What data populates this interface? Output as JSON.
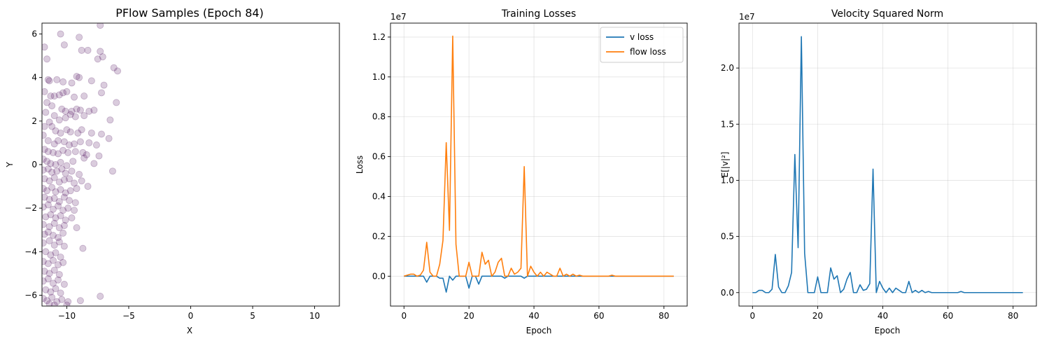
{
  "chart_data": [
    {
      "type": "scatter",
      "title": "PFlow Samples (Epoch 84)",
      "xlabel": "X",
      "ylabel": "Y",
      "xlim": [
        -12,
        12
      ],
      "ylim": [
        -6.5,
        6.5
      ],
      "xticks": [
        -10,
        -5,
        0,
        5,
        10
      ],
      "xtick_labels": [
        "−10",
        "−5",
        "0",
        "5",
        "10"
      ],
      "yticks": [
        -6,
        -4,
        -2,
        0,
        2,
        4,
        6
      ],
      "ytick_labels": [
        "−6",
        "−4",
        "−2",
        "0",
        "2",
        "4",
        "6"
      ],
      "grid": false,
      "color": "#440154",
      "alpha": 0.2,
      "points": [
        [
          -10.5,
          6.0
        ],
        [
          -11.8,
          5.4
        ],
        [
          -9.0,
          5.85
        ],
        [
          -7.3,
          6.4
        ],
        [
          -10.2,
          5.5
        ],
        [
          -8.8,
          5.25
        ],
        [
          -8.3,
          5.25
        ],
        [
          -7.3,
          5.2
        ],
        [
          -7.1,
          4.95
        ],
        [
          -7.5,
          4.85
        ],
        [
          -6.2,
          4.45
        ],
        [
          -5.9,
          4.3
        ],
        [
          -11.6,
          4.85
        ],
        [
          -11.5,
          3.9
        ],
        [
          -11.4,
          3.85
        ],
        [
          -10.8,
          3.9
        ],
        [
          -10.3,
          3.8
        ],
        [
          -9.6,
          3.75
        ],
        [
          -9.0,
          4.0
        ],
        [
          -9.2,
          4.05
        ],
        [
          -8.0,
          3.85
        ],
        [
          -7.0,
          3.65
        ],
        [
          -7.2,
          3.3
        ],
        [
          -6.0,
          2.85
        ],
        [
          -11.8,
          3.35
        ],
        [
          -11.3,
          3.15
        ],
        [
          -11.0,
          3.15
        ],
        [
          -10.6,
          3.2
        ],
        [
          -10.3,
          3.3
        ],
        [
          -10.0,
          3.35
        ],
        [
          -9.4,
          3.1
        ],
        [
          -8.6,
          3.15
        ],
        [
          -11.6,
          2.85
        ],
        [
          -11.2,
          2.7
        ],
        [
          -10.4,
          2.55
        ],
        [
          -10.1,
          2.45
        ],
        [
          -9.6,
          2.45
        ],
        [
          -9.2,
          2.55
        ],
        [
          -8.9,
          2.5
        ],
        [
          -8.2,
          2.45
        ],
        [
          -7.8,
          2.5
        ],
        [
          -11.7,
          2.4
        ],
        [
          -11.0,
          2.25
        ],
        [
          -10.6,
          2.05
        ],
        [
          -10.1,
          2.15
        ],
        [
          -9.7,
          2.3
        ],
        [
          -9.3,
          2.2
        ],
        [
          -8.6,
          2.25
        ],
        [
          -6.5,
          2.05
        ],
        [
          -11.8,
          1.75
        ],
        [
          -11.4,
          1.95
        ],
        [
          -11.2,
          1.75
        ],
        [
          -10.9,
          1.55
        ],
        [
          -10.5,
          1.45
        ],
        [
          -10.0,
          1.6
        ],
        [
          -9.7,
          1.5
        ],
        [
          -9.1,
          1.45
        ],
        [
          -8.8,
          1.6
        ],
        [
          -8.0,
          1.45
        ],
        [
          -7.2,
          1.4
        ],
        [
          -6.6,
          1.2
        ],
        [
          -11.9,
          1.35
        ],
        [
          -11.5,
          1.1
        ],
        [
          -11.0,
          0.95
        ],
        [
          -10.7,
          1.1
        ],
        [
          -10.2,
          1.05
        ],
        [
          -9.8,
          0.9
        ],
        [
          -9.4,
          0.95
        ],
        [
          -8.9,
          1.05
        ],
        [
          -8.2,
          1.0
        ],
        [
          -7.6,
          0.9
        ],
        [
          -11.8,
          0.7
        ],
        [
          -11.5,
          0.6
        ],
        [
          -11.1,
          0.55
        ],
        [
          -10.7,
          0.5
        ],
        [
          -10.3,
          0.65
        ],
        [
          -9.9,
          0.55
        ],
        [
          -9.3,
          0.6
        ],
        [
          -8.7,
          0.55
        ],
        [
          -8.4,
          0.45
        ],
        [
          -7.4,
          0.4
        ],
        [
          -11.9,
          0.25
        ],
        [
          -11.6,
          0.15
        ],
        [
          -11.3,
          0.05
        ],
        [
          -10.9,
          0.0
        ],
        [
          -10.5,
          0.1
        ],
        [
          -10.0,
          -0.05
        ],
        [
          -9.5,
          0.15
        ],
        [
          -8.6,
          0.3
        ],
        [
          -7.8,
          0.05
        ],
        [
          -11.9,
          -0.25
        ],
        [
          -11.5,
          -0.2
        ],
        [
          -11.2,
          -0.35
        ],
        [
          -10.8,
          -0.3
        ],
        [
          -10.4,
          -0.2
        ],
        [
          -10.1,
          -0.4
        ],
        [
          -9.6,
          -0.3
        ],
        [
          -9.0,
          -0.45
        ],
        [
          -6.3,
          -0.3
        ],
        [
          -11.8,
          -0.65
        ],
        [
          -11.4,
          -0.75
        ],
        [
          -11.0,
          -0.6
        ],
        [
          -10.6,
          -0.8
        ],
        [
          -10.2,
          -0.7
        ],
        [
          -9.8,
          -0.65
        ],
        [
          -9.4,
          -0.85
        ],
        [
          -8.8,
          -0.75
        ],
        [
          -8.3,
          -1.0
        ],
        [
          -11.9,
          -1.1
        ],
        [
          -11.6,
          -1.2
        ],
        [
          -11.2,
          -1.05
        ],
        [
          -10.9,
          -1.25
        ],
        [
          -10.5,
          -1.15
        ],
        [
          -10.1,
          -1.3
        ],
        [
          -9.7,
          -1.2
        ],
        [
          -9.2,
          -1.1
        ],
        [
          -11.8,
          -1.5
        ],
        [
          -11.4,
          -1.6
        ],
        [
          -11.0,
          -1.55
        ],
        [
          -10.6,
          -1.7
        ],
        [
          -10.2,
          -1.5
        ],
        [
          -9.8,
          -1.65
        ],
        [
          -9.3,
          -1.75
        ],
        [
          -11.9,
          -1.95
        ],
        [
          -11.5,
          -1.85
        ],
        [
          -11.1,
          -2.05
        ],
        [
          -10.7,
          -1.9
        ],
        [
          -10.3,
          -2.1
        ],
        [
          -9.9,
          -2.0
        ],
        [
          -9.4,
          -2.1
        ],
        [
          -11.7,
          -2.4
        ],
        [
          -11.3,
          -2.3
        ],
        [
          -10.9,
          -2.45
        ],
        [
          -10.5,
          -2.35
        ],
        [
          -10.1,
          -2.55
        ],
        [
          -9.6,
          -2.45
        ],
        [
          -11.9,
          -2.75
        ],
        [
          -11.4,
          -2.85
        ],
        [
          -11.0,
          -2.7
        ],
        [
          -10.6,
          -2.9
        ],
        [
          -10.2,
          -2.8
        ],
        [
          -9.2,
          -2.9
        ],
        [
          -11.8,
          -3.2
        ],
        [
          -11.5,
          -3.1
        ],
        [
          -11.1,
          -3.25
        ],
        [
          -10.7,
          -3.35
        ],
        [
          -10.3,
          -3.15
        ],
        [
          -11.9,
          -3.6
        ],
        [
          -11.4,
          -3.5
        ],
        [
          -11.0,
          -3.7
        ],
        [
          -10.6,
          -3.55
        ],
        [
          -10.2,
          -3.75
        ],
        [
          -8.7,
          -3.85
        ],
        [
          -11.7,
          -4.0
        ],
        [
          -11.3,
          -4.15
        ],
        [
          -10.9,
          -4.05
        ],
        [
          -10.5,
          -4.25
        ],
        [
          -11.9,
          -4.45
        ],
        [
          -11.5,
          -4.55
        ],
        [
          -11.1,
          -4.4
        ],
        [
          -10.7,
          -4.6
        ],
        [
          -10.3,
          -4.5
        ],
        [
          -11.8,
          -4.9
        ],
        [
          -11.4,
          -5.0
        ],
        [
          -11.0,
          -4.85
        ],
        [
          -10.6,
          -5.05
        ],
        [
          -11.9,
          -5.35
        ],
        [
          -11.5,
          -5.25
        ],
        [
          -11.1,
          -5.45
        ],
        [
          -10.7,
          -5.3
        ],
        [
          -10.2,
          -5.5
        ],
        [
          -11.7,
          -5.75
        ],
        [
          -11.3,
          -5.85
        ],
        [
          -10.9,
          -5.7
        ],
        [
          -10.5,
          -5.9
        ],
        [
          -11.9,
          -6.15
        ],
        [
          -11.6,
          -6.25
        ],
        [
          -11.2,
          -6.1
        ],
        [
          -10.8,
          -6.3
        ],
        [
          -10.4,
          -6.2
        ],
        [
          -9.9,
          -6.3
        ],
        [
          -11.4,
          -6.4
        ],
        [
          -11.0,
          -6.45
        ],
        [
          -7.3,
          -6.05
        ],
        [
          -8.9,
          -6.25
        ],
        [
          -10.0,
          -6.45
        ]
      ]
    },
    {
      "type": "line",
      "title": "Training Losses",
      "xlabel": "Epoch",
      "ylabel": "Loss",
      "scale_label": "1e7",
      "xlim": [
        -4.15,
        87.15
      ],
      "ylim": [
        -0.15,
        1.27
      ],
      "xticks": [
        0,
        20,
        40,
        60,
        80
      ],
      "xtick_labels": [
        "0",
        "20",
        "40",
        "60",
        "80"
      ],
      "yticks": [
        0.0,
        0.2,
        0.4,
        0.6,
        0.8,
        1.0,
        1.2
      ],
      "ytick_labels": [
        "0.0",
        "0.2",
        "0.4",
        "0.6",
        "0.8",
        "1.0",
        "1.2"
      ],
      "grid": true,
      "legend_position": "top-right",
      "series": [
        {
          "name": "v loss",
          "color": "#1f77b4",
          "values": [
            0,
            0,
            0,
            0,
            0,
            0,
            0,
            -0.03,
            0,
            0,
            0,
            -0.01,
            -0.01,
            -0.08,
            0,
            -0.02,
            0,
            0,
            0,
            0,
            -0.06,
            0,
            0,
            -0.04,
            0,
            0,
            0,
            0,
            0,
            0,
            0,
            -0.01,
            0,
            0,
            0,
            0,
            0,
            -0.01,
            0,
            0,
            0,
            0,
            0,
            0,
            0,
            0,
            0,
            0,
            0,
            0,
            0,
            0,
            0,
            0,
            0,
            0,
            0,
            0,
            0,
            0,
            0,
            0,
            0,
            0,
            0,
            0,
            0,
            0,
            0,
            0,
            0,
            0,
            0,
            0,
            0,
            0,
            0,
            0,
            0,
            0,
            0,
            0,
            0,
            0
          ]
        },
        {
          "name": "flow loss",
          "color": "#ff7f0e",
          "values": [
            0,
            0.005,
            0.01,
            0.01,
            0,
            0.005,
            0.03,
            0.17,
            0.02,
            0,
            0,
            0.06,
            0.18,
            0.67,
            0.23,
            1.205,
            0.16,
            0,
            0,
            0,
            0.07,
            0,
            0,
            0,
            0.12,
            0.06,
            0.08,
            0,
            0.02,
            0.07,
            0.09,
            0,
            0,
            0.04,
            0.01,
            0.02,
            0.04,
            0.55,
            0,
            0.05,
            0.02,
            0,
            0.02,
            0,
            0.02,
            0.01,
            0,
            0,
            0.04,
            0,
            0.01,
            0,
            0.01,
            0,
            0.005,
            0,
            0,
            0,
            0,
            0,
            0,
            0,
            0,
            0,
            0.005,
            0,
            0,
            0,
            0,
            0,
            0,
            0,
            0,
            0,
            0,
            0,
            0,
            0,
            0,
            0,
            0,
            0,
            0,
            0
          ]
        }
      ]
    },
    {
      "type": "line",
      "title": "Velocity Squared Norm",
      "xlabel": "Epoch",
      "ylabel": "E[|v|²]",
      "scale_label": "1e7",
      "xlim": [
        -4.15,
        87.15
      ],
      "ylim": [
        -0.12,
        2.4
      ],
      "xticks": [
        0,
        20,
        40,
        60,
        80
      ],
      "xtick_labels": [
        "0",
        "20",
        "40",
        "60",
        "80"
      ],
      "yticks": [
        0.0,
        0.5,
        1.0,
        1.5,
        2.0
      ],
      "ytick_labels": [
        "0.0",
        "0.5",
        "1.0",
        "1.5",
        "2.0"
      ],
      "grid": true,
      "series": [
        {
          "name": "",
          "color": "#1f77b4",
          "values": [
            0,
            0,
            0.02,
            0.02,
            0,
            0,
            0.03,
            0.34,
            0.05,
            0,
            0,
            0.06,
            0.18,
            1.23,
            0.4,
            2.28,
            0.35,
            0,
            0,
            0,
            0.14,
            0,
            0,
            0,
            0.22,
            0.12,
            0.15,
            0,
            0.03,
            0.12,
            0.18,
            0,
            0,
            0.07,
            0.02,
            0.03,
            0.08,
            1.1,
            0,
            0.1,
            0.04,
            0,
            0.04,
            0,
            0.04,
            0.02,
            0,
            0,
            0.1,
            0,
            0.02,
            0,
            0.02,
            0,
            0.01,
            0,
            0,
            0,
            0,
            0,
            0,
            0,
            0,
            0,
            0.01,
            0,
            0,
            0,
            0,
            0,
            0,
            0,
            0,
            0,
            0,
            0,
            0,
            0,
            0,
            0,
            0,
            0,
            0,
            0
          ]
        }
      ]
    }
  ]
}
